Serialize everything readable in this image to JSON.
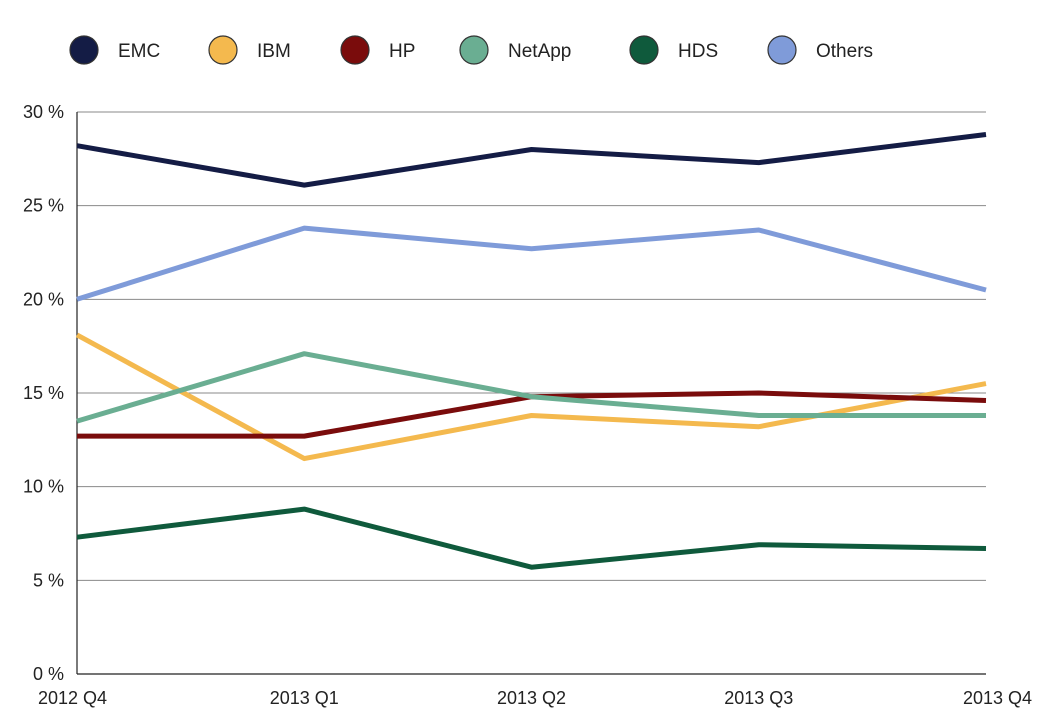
{
  "chart_data": {
    "type": "line",
    "categories": [
      "2012 Q4",
      "2013 Q1",
      "2013 Q2",
      "2013 Q3",
      "2013 Q4"
    ],
    "series": [
      {
        "name": "EMC",
        "color": "#141c45",
        "values": [
          28.2,
          26.1,
          28.0,
          27.3,
          28.8
        ]
      },
      {
        "name": "IBM",
        "color": "#f4b94e",
        "values": [
          18.1,
          11.5,
          13.8,
          13.2,
          15.5
        ]
      },
      {
        "name": "HP",
        "color": "#7a0c0c",
        "values": [
          12.7,
          12.7,
          14.8,
          15.0,
          14.6
        ]
      },
      {
        "name": "NetApp",
        "color": "#6aae92",
        "values": [
          13.5,
          17.1,
          14.8,
          13.8,
          13.8
        ]
      },
      {
        "name": "HDS",
        "color": "#0f5a3c",
        "values": [
          7.3,
          8.8,
          5.7,
          6.9,
          6.7
        ]
      },
      {
        "name": "Others",
        "color": "#7f9bd9",
        "values": [
          20.0,
          23.8,
          22.7,
          23.7,
          20.5
        ]
      }
    ],
    "ylim": [
      0,
      30
    ],
    "yticks": [
      0,
      5,
      10,
      15,
      20,
      25,
      30
    ],
    "ytick_labels": [
      "0 %",
      "5 %",
      "10 %",
      "15 %",
      "20 %",
      "25 %",
      "30 %"
    ],
    "grid": true,
    "legend_position": "top",
    "title": "",
    "xlabel": "",
    "ylabel": ""
  }
}
